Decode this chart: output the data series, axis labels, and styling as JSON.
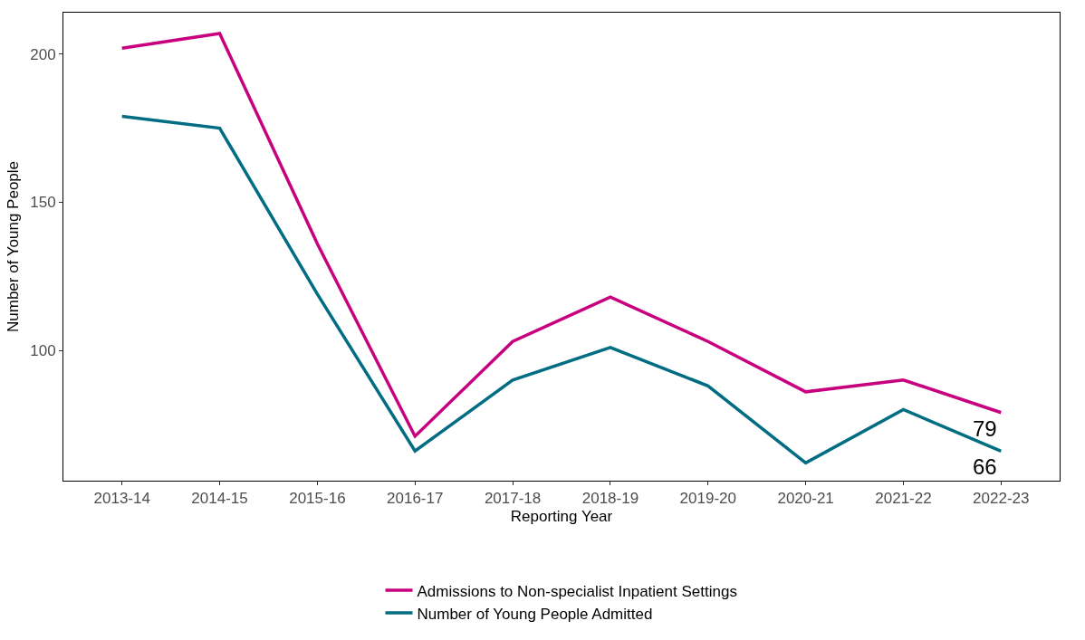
{
  "chart_data": {
    "type": "line",
    "xlabel": "Reporting Year",
    "ylabel": "Number of Young People",
    "categories": [
      "2013-14",
      "2014-15",
      "2015-16",
      "2016-17",
      "2017-18",
      "2018-19",
      "2019-20",
      "2020-21",
      "2021-22",
      "2022-23"
    ],
    "series": [
      {
        "name": "Admissions to Non-specialist Inpatient Settings",
        "color": "#c8007f",
        "values": [
          202,
          207,
          136,
          71,
          103,
          118,
          103,
          86,
          90,
          79
        ]
      },
      {
        "name": "Number of Young People Admitted",
        "color": "#006d82",
        "values": [
          179,
          175,
          119,
          66,
          90,
          101,
          88,
          62,
          80,
          66
        ]
      }
    ],
    "annotations": [
      {
        "text": "79",
        "x": "2022-23",
        "y": 79
      },
      {
        "text": "66",
        "x": "2022-23",
        "y": 66
      }
    ],
    "ylim": [
      56,
      214
    ],
    "yticks": [
      100,
      150,
      200
    ],
    "legend": "bottom",
    "marker": "none",
    "line_style": "solid"
  }
}
